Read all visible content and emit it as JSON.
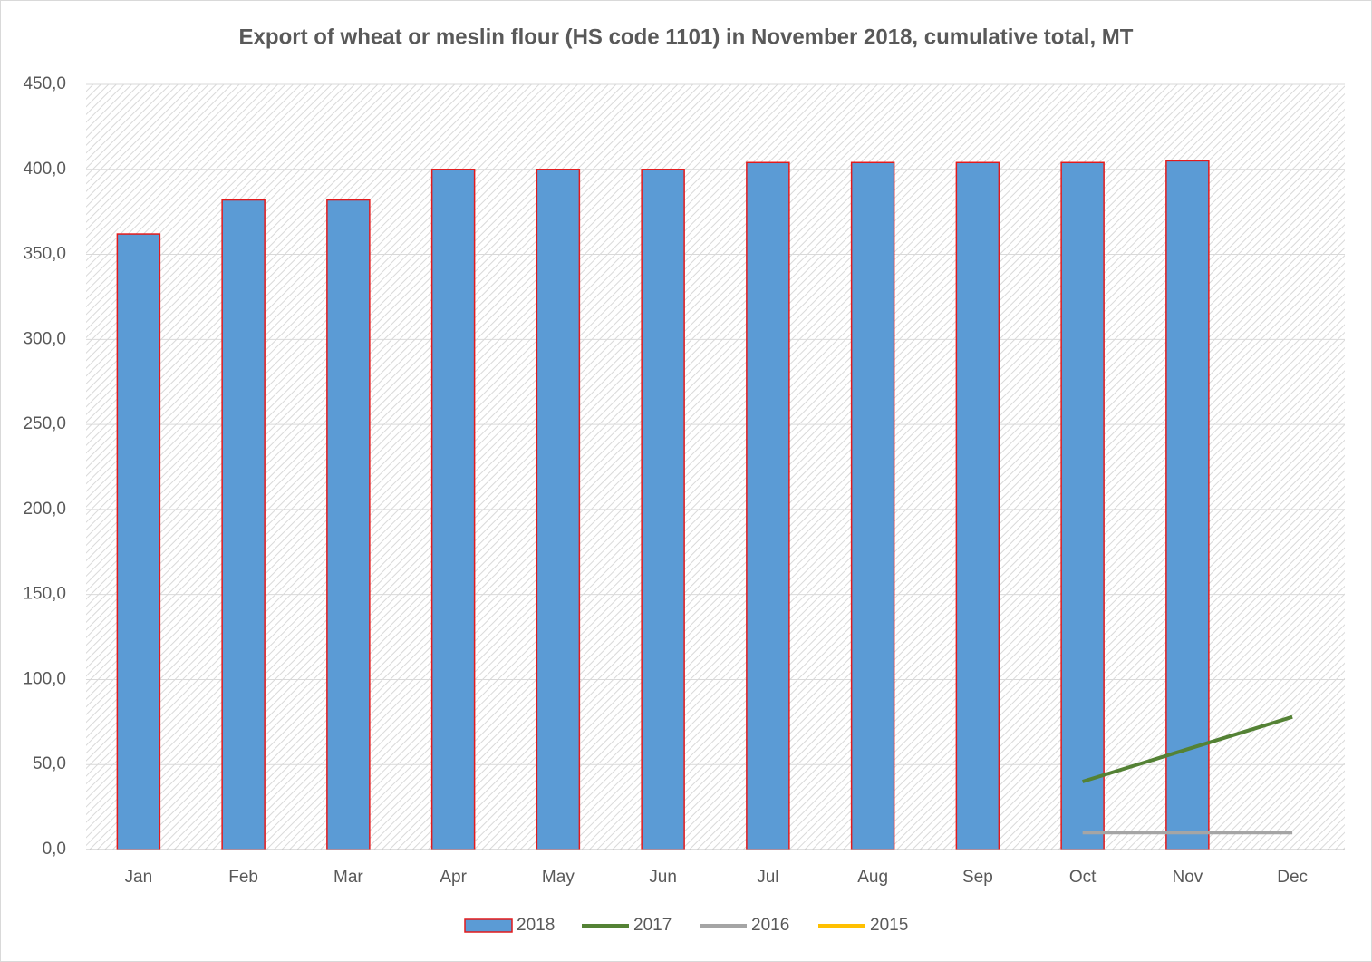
{
  "chart_data": {
    "type": "bar",
    "title": "Export of wheat or meslin flour (HS code 1101) in November 2018, cumulative total, MT",
    "categories": [
      "Jan",
      "Feb",
      "Mar",
      "Apr",
      "May",
      "Jun",
      "Jul",
      "Aug",
      "Sep",
      "Oct",
      "Nov",
      "Dec"
    ],
    "series": [
      {
        "name": "2018",
        "type": "bar",
        "color": "#5b9bd5",
        "edge_color": "#e31a1c",
        "values": [
          362,
          382,
          382,
          400,
          400,
          400,
          404,
          404,
          404,
          404,
          405,
          null
        ]
      },
      {
        "name": "2017",
        "type": "line",
        "color": "#548235",
        "values": [
          null,
          null,
          null,
          null,
          null,
          null,
          null,
          null,
          null,
          40,
          59,
          78
        ]
      },
      {
        "name": "2016",
        "type": "line",
        "color": "#a5a5a5",
        "values": [
          null,
          null,
          null,
          null,
          null,
          null,
          null,
          null,
          null,
          10,
          10,
          10
        ]
      },
      {
        "name": "2015",
        "type": "line",
        "color": "#ffc000",
        "values": [
          null,
          null,
          null,
          null,
          null,
          null,
          null,
          null,
          null,
          null,
          null,
          null
        ]
      }
    ],
    "ylim": [
      0,
      450
    ],
    "yticks": [
      {
        "value": 0,
        "label": "0,0"
      },
      {
        "value": 50,
        "label": "50,0"
      },
      {
        "value": 100,
        "label": "100,0"
      },
      {
        "value": 150,
        "label": "150,0"
      },
      {
        "value": 200,
        "label": "200,0"
      },
      {
        "value": 250,
        "label": "250,0"
      },
      {
        "value": 300,
        "label": "300,0"
      },
      {
        "value": 350,
        "label": "350,0"
      },
      {
        "value": 400,
        "label": "400,0"
      },
      {
        "value": 450,
        "label": "450,0"
      }
    ],
    "grid": true,
    "legend": "bottom"
  }
}
